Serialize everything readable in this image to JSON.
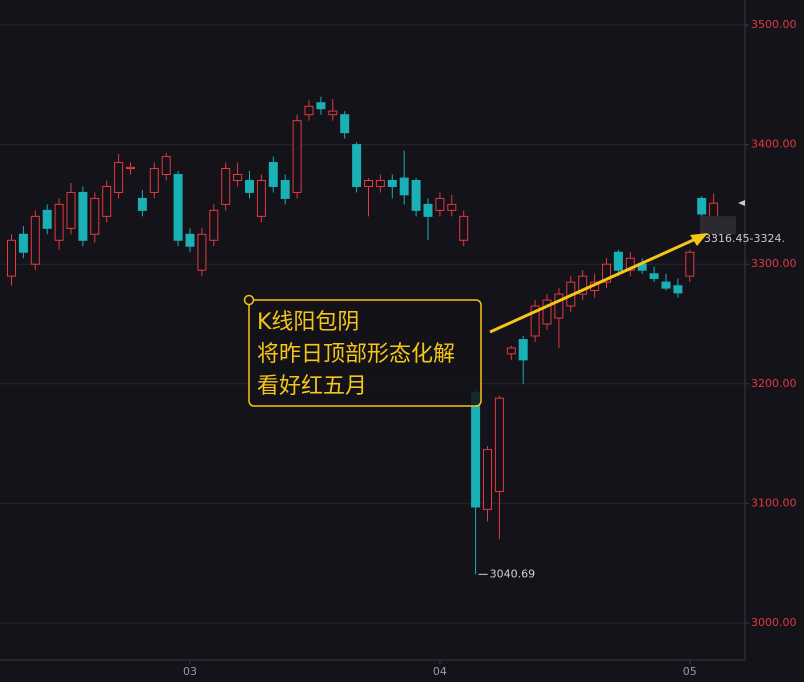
{
  "chart_data": {
    "type": "candlestick",
    "categories": [
      null,
      null,
      null,
      null,
      null,
      null,
      null,
      null,
      null,
      null,
      null,
      null,
      null,
      null,
      null,
      "03",
      null,
      null,
      null,
      null,
      null,
      null,
      null,
      null,
      null,
      null,
      null,
      null,
      null,
      null,
      null,
      null,
      null,
      null,
      null,
      null,
      "04",
      null,
      null,
      null,
      null,
      null,
      null,
      null,
      null,
      null,
      null,
      null,
      null,
      null,
      null,
      null,
      null,
      null,
      null,
      null,
      null,
      "05",
      null,
      null
    ],
    "open": [
      3290,
      3325,
      3300,
      3345,
      3320,
      3330,
      3360,
      3325,
      3340,
      3360,
      3380,
      3355,
      3360,
      3375,
      3375,
      3325,
      3295,
      3320,
      3350,
      3370,
      3370,
      3340,
      3385,
      3370,
      3360,
      3425,
      3435,
      3425,
      3425,
      3400,
      3365,
      3365,
      3370,
      3372,
      3370,
      3350,
      3345,
      3345,
      3320,
      3193,
      3095,
      3110,
      3225,
      3237,
      3240,
      3250,
      3255,
      3265,
      3275,
      3278,
      3285,
      3310,
      3295,
      3300,
      3292,
      3285,
      3282,
      3290,
      3355,
      3326
    ],
    "high": [
      3325,
      3332,
      3345,
      3350,
      3355,
      3368,
      3365,
      3360,
      3370,
      3392,
      3385,
      3362,
      3385,
      3393,
      3378,
      3330,
      3330,
      3350,
      3385,
      3385,
      3378,
      3375,
      3390,
      3375,
      3425,
      3437,
      3440,
      3438,
      3428,
      3402,
      3372,
      3375,
      3375,
      3395,
      3372,
      3355,
      3360,
      3358,
      3345,
      3197,
      3148,
      3190,
      3232,
      3240,
      3270,
      3275,
      3280,
      3290,
      3295,
      3292,
      3305,
      3312,
      3310,
      3305,
      3298,
      3292,
      3288,
      3312,
      3357,
      3359
    ],
    "low": [
      3282,
      3305,
      3295,
      3325,
      3312,
      3325,
      3315,
      3318,
      3335,
      3355,
      3375,
      3340,
      3355,
      3370,
      3315,
      3310,
      3290,
      3315,
      3345,
      3365,
      3355,
      3335,
      3360,
      3350,
      3355,
      3420,
      3425,
      3420,
      3405,
      3360,
      3340,
      3360,
      3355,
      3350,
      3340,
      3320,
      3340,
      3340,
      3315,
      3040.69,
      3085,
      3070,
      3220,
      3200,
      3235,
      3245,
      3230,
      3260,
      3270,
      3272,
      3280,
      3290,
      3290,
      3292,
      3285,
      3278,
      3272,
      3285,
      3325,
      3322
    ],
    "close": [
      3320,
      3310,
      3340,
      3330,
      3350,
      3360,
      3320,
      3355,
      3365,
      3385,
      3381,
      3345,
      3380,
      3390,
      3320,
      3315,
      3325,
      3345,
      3380,
      3375,
      3360,
      3370,
      3365,
      3355,
      3420,
      3432,
      3430,
      3428,
      3410,
      3365,
      3370,
      3370,
      3365,
      3358,
      3345,
      3340,
      3355,
      3350,
      3340,
      3097,
      3145,
      3188,
      3230,
      3220,
      3265,
      3270,
      3275,
      3285,
      3290,
      3285,
      3300,
      3295,
      3305,
      3295,
      3288,
      3280,
      3276,
      3310,
      3342,
      3351
    ],
    "up_color": "#e5393f",
    "down_color": "#19b0b6",
    "ylim": [
      2990,
      3520
    ],
    "yticks": [
      {
        "value": 3000,
        "label": "3000.00"
      },
      {
        "value": 3100,
        "label": "3100.00"
      },
      {
        "value": 3200,
        "label": "3200.00"
      },
      {
        "value": 3300,
        "label": "3300.00"
      },
      {
        "value": 3400,
        "label": "3400.00"
      },
      {
        "value": 3500,
        "label": "3500.00"
      }
    ],
    "grid": true,
    "price_label": "3316.45-3324.",
    "annotation": [
      "K线阳包阴",
      "将昨日顶部形态化解",
      "看好红五月"
    ]
  }
}
